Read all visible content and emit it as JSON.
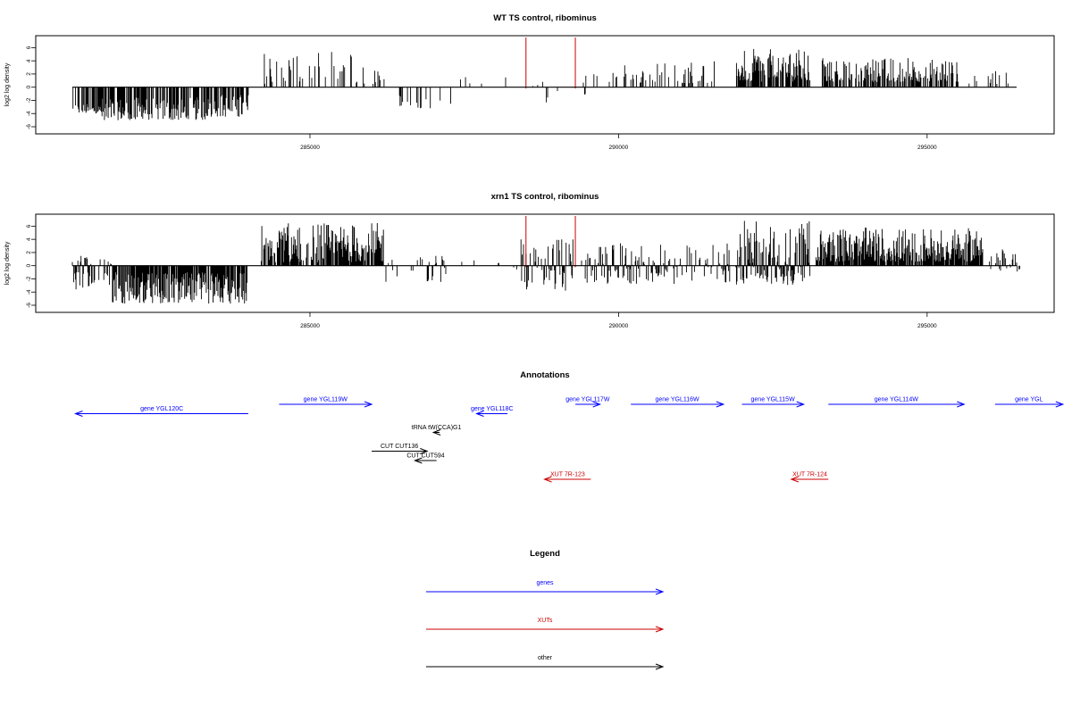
{
  "chart_data": [
    {
      "type": "bar",
      "title": "WT TS control, ribominus",
      "xlabel": "",
      "ylabel": "log2 log density",
      "xlim": [
        281000,
        296500
      ],
      "ylim": [
        -6,
        7
      ],
      "yticks": [
        -6,
        -4,
        -2,
        0,
        2,
        4,
        6
      ],
      "xticks": [
        285000,
        290000,
        295000
      ],
      "grid": false,
      "markers": [
        {
          "x": 288500,
          "color": "#cc0000"
        },
        {
          "x": 289300,
          "color": "#cc0000"
        }
      ],
      "segments": [
        {
          "from": 281150,
          "to": 281600,
          "min": -4,
          "max": -2.5,
          "density": 0.55
        },
        {
          "from": 281600,
          "to": 283300,
          "min": -5.0,
          "max": -1.5,
          "density": 0.7
        },
        {
          "from": 283300,
          "to": 284000,
          "min": -4.5,
          "max": -1.0,
          "density": 0.6
        },
        {
          "from": 284200,
          "to": 286200,
          "min": 0.5,
          "max": 5.5,
          "density": 0.25
        },
        {
          "from": 286300,
          "to": 287300,
          "min": -3.2,
          "max": -1.0,
          "density": 0.1
        },
        {
          "from": 287300,
          "to": 288200,
          "min": 0.5,
          "max": 2.0,
          "density": 0.05
        },
        {
          "from": 288600,
          "to": 289500,
          "min": -2.8,
          "max": 1.8,
          "density": 0.1
        },
        {
          "from": 289600,
          "to": 291600,
          "min": 0.6,
          "max": 4.0,
          "density": 0.2
        },
        {
          "from": 291900,
          "to": 293100,
          "min": 0.8,
          "max": 5.8,
          "density": 0.75
        },
        {
          "from": 293300,
          "to": 295500,
          "min": 0.8,
          "max": 4.5,
          "density": 0.65
        },
        {
          "from": 295600,
          "to": 296500,
          "min": 0.4,
          "max": 3.0,
          "density": 0.15
        }
      ]
    },
    {
      "type": "bar",
      "title": "xrn1 TS control, ribominus",
      "xlabel": "",
      "ylabel": "log2 log density",
      "xlim": [
        281000,
        296500
      ],
      "ylim": [
        -6,
        7
      ],
      "yticks": [
        -6,
        -4,
        -2,
        0,
        2,
        4,
        6
      ],
      "xticks": [
        285000,
        290000,
        295000
      ],
      "grid": false,
      "markers": [
        {
          "x": 288500,
          "color": "#cc0000"
        },
        {
          "x": 289300,
          "color": "#cc0000"
        }
      ],
      "segments": [
        {
          "from": 281150,
          "to": 281800,
          "min": -4.0,
          "max": 1.5,
          "density": 0.6
        },
        {
          "from": 281800,
          "to": 284000,
          "min": -5.8,
          "max": -1.0,
          "density": 0.85
        },
        {
          "from": 284200,
          "to": 286200,
          "min": 0.5,
          "max": 6.5,
          "density": 0.8
        },
        {
          "from": 286200,
          "to": 287300,
          "min": -2.5,
          "max": 1.5,
          "density": 0.2
        },
        {
          "from": 287400,
          "to": 288400,
          "min": -1.0,
          "max": 1.0,
          "density": 0.1
        },
        {
          "from": 288400,
          "to": 289300,
          "min": -3.8,
          "max": 4.0,
          "density": 0.6
        },
        {
          "from": 289400,
          "to": 291800,
          "min": -2.8,
          "max": 3.5,
          "density": 0.6
        },
        {
          "from": 291900,
          "to": 293100,
          "min": -3.0,
          "max": 6.8,
          "density": 0.9
        },
        {
          "from": 293200,
          "to": 295900,
          "min": 0.6,
          "max": 5.8,
          "density": 0.9
        },
        {
          "from": 296000,
          "to": 296500,
          "min": -1.0,
          "max": 2.5,
          "density": 0.5
        }
      ]
    }
  ],
  "annotations": {
    "title": "Annotations",
    "items": [
      {
        "label": "gene YGL120C",
        "from": 284000,
        "to": 281200,
        "row": 1,
        "color": "#0000ff"
      },
      {
        "label": "gene YGL119W",
        "from": 284500,
        "to": 286000,
        "row": 0,
        "color": "#0000ff"
      },
      {
        "label": "gene YGL117W",
        "from": 289300,
        "to": 289700,
        "row": 0,
        "color": "#0000ff"
      },
      {
        "label": "gene YGL118C",
        "from": 288200,
        "to": 287700,
        "row": 1,
        "color": "#0000ff"
      },
      {
        "label": "gene YGL116W",
        "from": 290200,
        "to": 291700,
        "row": 0,
        "color": "#0000ff"
      },
      {
        "label": "gene YGL115W",
        "from": 292000,
        "to": 293000,
        "row": 0,
        "color": "#0000ff"
      },
      {
        "label": "gene YGL114W",
        "from": 293400,
        "to": 295600,
        "row": 0,
        "color": "#0000ff"
      },
      {
        "label": "gene YGL",
        "from": 296100,
        "to": 297200,
        "row": 0,
        "color": "#0000ff"
      },
      {
        "label": "tRNA tW(CCA)G1",
        "from": 287100,
        "to": 287000,
        "row": 3,
        "color": "#000000"
      },
      {
        "label": "CUT CUT136",
        "from": 286000,
        "to": 286900,
        "row": 5,
        "color": "#000000"
      },
      {
        "label": "CUT CUT594",
        "from": 287050,
        "to": 286700,
        "row": 6,
        "color": "#000000"
      },
      {
        "label": "XUT 7R-123",
        "from": 289550,
        "to": 288800,
        "row": 8,
        "color": "#cc0000"
      },
      {
        "label": "XUT 7R-124",
        "from": 293400,
        "to": 292800,
        "row": 8,
        "color": "#cc0000"
      }
    ]
  },
  "legend": {
    "title": "Legend",
    "entries": [
      {
        "label": "genes",
        "color": "#0000ff"
      },
      {
        "label": "XUTs",
        "color": "#cc0000"
      },
      {
        "label": "other",
        "color": "#000000"
      }
    ]
  }
}
